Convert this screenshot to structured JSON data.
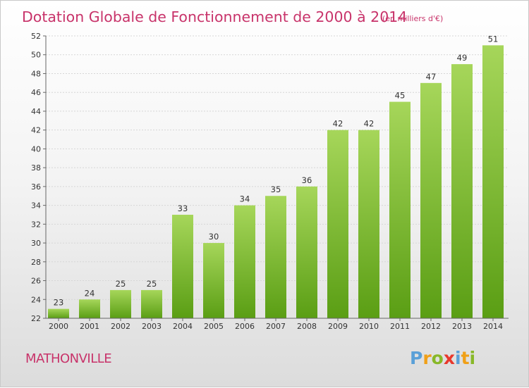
{
  "chart_data": {
    "type": "bar",
    "title": "Dotation Globale de Fonctionnement de 2000 à 2014",
    "subtitle": "(en milliers d'€)",
    "categories": [
      "2000",
      "2001",
      "2002",
      "2003",
      "2004",
      "2005",
      "2006",
      "2007",
      "2008",
      "2009",
      "2010",
      "2011",
      "2012",
      "2013",
      "2014"
    ],
    "values": [
      23,
      24,
      25,
      25,
      33,
      30,
      34,
      35,
      36,
      42,
      42,
      45,
      47,
      49,
      51
    ],
    "xlabel": "",
    "ylabel": "",
    "ylim": [
      22,
      52
    ],
    "yticks": [
      22,
      24,
      26,
      28,
      30,
      32,
      34,
      36,
      38,
      40,
      42,
      44,
      46,
      48,
      50,
      52
    ],
    "grid": true
  },
  "town": "MATHONVILLE",
  "logo": {
    "letters": [
      "P",
      "r",
      "o",
      "x",
      "i",
      "t",
      "i"
    ],
    "colors": [
      "#5aa0d8",
      "#f0a018",
      "#88b828",
      "#e8382c",
      "#5aa0d8",
      "#f0a018",
      "#88b828"
    ]
  },
  "colors": {
    "bar_top": "#a6d65a",
    "bar_bottom": "#5a9e14",
    "accent": "#c8336a"
  }
}
